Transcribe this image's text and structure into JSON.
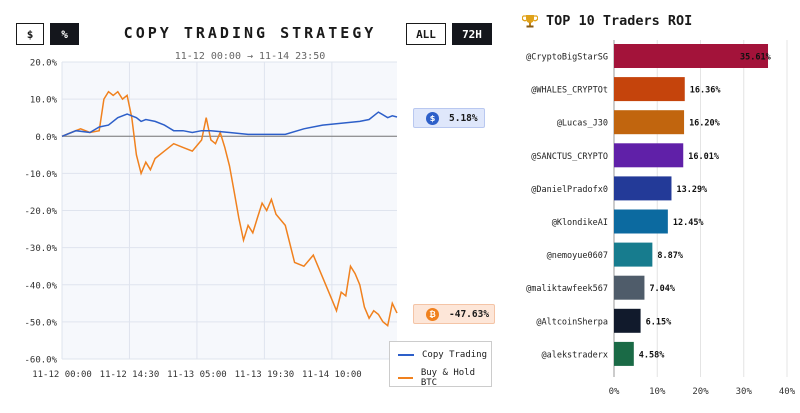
{
  "controls": {
    "dollar_label": "$",
    "percent_label": "%",
    "all_label": "ALL",
    "range_label": "72H"
  },
  "left_chart": {
    "title": "COPY TRADING STRATEGY",
    "subtitle": "11-12 00:00 → 11-14 23:50",
    "copy_tag": "5.18%",
    "copy_tag_icon": "$",
    "btc_tag": "-47.63%",
    "btc_tag_icon": "₿"
  },
  "right_chart": {
    "title": "TOP 10 Traders ROI",
    "icon": "trophy-icon"
  },
  "colors": {
    "copy": "#2d5fc9",
    "btc": "#f0811e",
    "bars": [
      "#a3133a",
      "#c5440c",
      "#c1650e",
      "#6020a8",
      "#233a98",
      "#0c6aa0",
      "#177c8e",
      "#4f5c6a",
      "#111a2c",
      "#1a6a46"
    ]
  },
  "chart_data": [
    {
      "type": "line",
      "title": "COPY TRADING STRATEGY",
      "xlabel": "",
      "ylabel": "",
      "x_ticks": [
        "11-12 00:00",
        "11-12 14:30",
        "11-13 05:00",
        "11-13 19:30",
        "11-14 10:00"
      ],
      "y_ticks": [
        "20.0%",
        "10.0%",
        "0.0%",
        "-10.0%",
        "-20.0%",
        "-30.0%",
        "-40.0%",
        "-50.0%",
        "-60.0%"
      ],
      "ylim": [
        -60,
        20
      ],
      "x_unit": "hours since 11-12 00:00",
      "grid": true,
      "legend_position": "bottom-right",
      "series": [
        {
          "name": "Copy Trading",
          "x": [
            0,
            3,
            6,
            8,
            10,
            12,
            14,
            16,
            17,
            18,
            20,
            22,
            24,
            26,
            28,
            30,
            32,
            36,
            40,
            44,
            48,
            52,
            56,
            60,
            64,
            66,
            68,
            70,
            71,
            72
          ],
          "values": [
            0,
            1.5,
            1,
            2.5,
            3,
            5,
            6,
            5,
            4,
            4.5,
            4,
            3,
            1.5,
            1.5,
            1,
            1.5,
            1.5,
            1,
            0.5,
            0.5,
            0.5,
            2,
            3,
            3.5,
            4,
            4.5,
            6.5,
            5,
            5.5,
            5.18
          ]
        },
        {
          "name": "Buy & Hold BTC",
          "x": [
            0,
            2,
            4,
            6,
            8,
            9,
            10,
            11,
            12,
            13,
            14,
            15,
            16,
            17,
            18,
            19,
            20,
            22,
            24,
            26,
            28,
            30,
            31,
            32,
            33,
            34,
            35,
            36,
            37,
            38,
            39,
            40,
            41,
            42,
            43,
            44,
            45,
            46,
            48,
            50,
            52,
            54,
            56,
            58,
            59,
            60,
            61,
            62,
            63,
            64,
            65,
            66,
            67,
            68,
            69,
            70,
            71,
            72
          ],
          "values": [
            0,
            1,
            2,
            1,
            1.5,
            10,
            12,
            11,
            12,
            10,
            11,
            5,
            -5,
            -10,
            -7,
            -9,
            -6,
            -4,
            -2,
            -3,
            -4,
            -1,
            5,
            -1,
            -2,
            1,
            -3,
            -8,
            -15,
            -22,
            -28,
            -24,
            -26,
            -22,
            -18,
            -20,
            -17,
            -21,
            -24,
            -34,
            -35,
            -32,
            -38,
            -44,
            -47,
            -42,
            -43,
            -35,
            -37,
            -40,
            -46,
            -49,
            -47,
            -48,
            -50,
            -51,
            -45,
            -47.63
          ]
        }
      ]
    },
    {
      "type": "bar",
      "orientation": "horizontal",
      "title": "TOP 10 Traders ROI",
      "categories": [
        "@CryptoBigStarSG",
        "@WHALES_CRYPTOt",
        "@Lucas_J30",
        "@SANCTUS_CRYPTO",
        "@DanielPradofx0",
        "@KlondikeAI",
        "@nemoyue0607",
        "@maliktawfeek567",
        "@AltcoinSherpa",
        "@alekstraderx"
      ],
      "values": [
        35.61,
        16.36,
        16.2,
        16.01,
        13.29,
        12.45,
        8.87,
        7.04,
        6.15,
        4.58
      ],
      "data_labels": [
        "35.61%",
        "16.36%",
        "16.20%",
        "16.01%",
        "13.29%",
        "12.45%",
        "8.87%",
        "7.04%",
        "6.15%",
        "4.58%"
      ],
      "x_ticks": [
        "0%",
        "10%",
        "20%",
        "30%",
        "40%"
      ],
      "xlim": [
        0,
        40
      ]
    }
  ],
  "legend": {
    "copy_label": "Copy Trading",
    "btc_label": "Buy & Hold BTC"
  }
}
